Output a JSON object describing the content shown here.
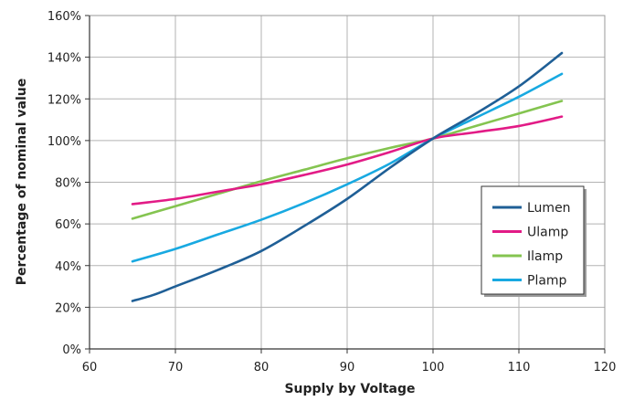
{
  "chart_data": {
    "type": "line",
    "title": "",
    "xlabel": "Supply by Voltage",
    "ylabel": "Percentage of nominal value",
    "xlim": [
      60,
      120
    ],
    "ylim": [
      0,
      160
    ],
    "x_ticks": [
      "60",
      "70",
      "80",
      "90",
      "100",
      "110",
      "120"
    ],
    "y_ticks": [
      "0%",
      "20%",
      "40%",
      "60%",
      "80%",
      "100%",
      "120%",
      "140%",
      "160%"
    ],
    "grid": true,
    "legend_position": "bottom-right",
    "series": [
      {
        "name": "Lumen",
        "color": "#1f5f96",
        "points": [
          [
            65,
            23
          ],
          [
            67.5,
            26
          ],
          [
            70,
            30
          ],
          [
            75,
            38
          ],
          [
            80,
            47
          ],
          [
            85,
            59
          ],
          [
            90,
            72
          ],
          [
            95,
            87
          ],
          [
            100,
            101
          ],
          [
            105,
            113
          ],
          [
            110,
            126
          ],
          [
            115,
            142
          ]
        ]
      },
      {
        "name": "Ulamp",
        "color": "#e21b86",
        "points": [
          [
            65,
            69.5
          ],
          [
            70,
            72
          ],
          [
            75,
            75.5
          ],
          [
            80,
            79
          ],
          [
            85,
            83.5
          ],
          [
            90,
            88.5
          ],
          [
            95,
            94.5
          ],
          [
            100,
            101
          ],
          [
            105,
            104
          ],
          [
            110,
            107
          ],
          [
            115,
            111.5
          ]
        ]
      },
      {
        "name": "Ilamp",
        "color": "#84c450",
        "points": [
          [
            65,
            62.5
          ],
          [
            70,
            68.5
          ],
          [
            75,
            74.5
          ],
          [
            80,
            80.5
          ],
          [
            85,
            86
          ],
          [
            90,
            91.5
          ],
          [
            95,
            96.5
          ],
          [
            100,
            101
          ],
          [
            105,
            107
          ],
          [
            110,
            113
          ],
          [
            115,
            119
          ]
        ]
      },
      {
        "name": "Plamp",
        "color": "#18a9e1",
        "points": [
          [
            65,
            42
          ],
          [
            70,
            48
          ],
          [
            75,
            55
          ],
          [
            80,
            62
          ],
          [
            85,
            70
          ],
          [
            90,
            79
          ],
          [
            95,
            89
          ],
          [
            100,
            101
          ],
          [
            105,
            111
          ],
          [
            110,
            121
          ],
          [
            115,
            132
          ]
        ]
      }
    ]
  }
}
